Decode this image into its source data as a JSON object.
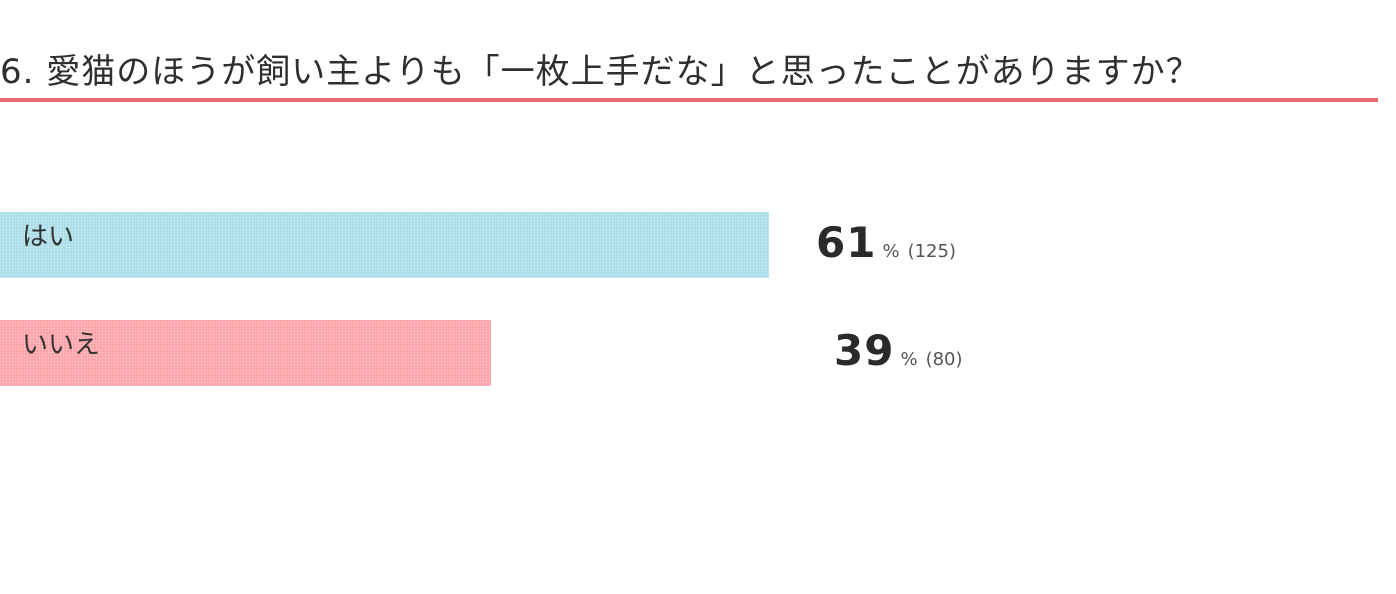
{
  "question": {
    "title": "6. 愛猫のほうが飼い主よりも「一枚上手だな」と思ったことがありますか？"
  },
  "chart_data": {
    "type": "bar",
    "orientation": "horizontal",
    "categories": [
      "はい",
      "いいえ"
    ],
    "values": [
      61,
      39
    ],
    "counts": [
      "(125)",
      "(80)"
    ],
    "unit": "%",
    "colors": [
      "#a9dde8",
      "#ffa1a6"
    ],
    "xlim": [
      0,
      100
    ]
  }
}
